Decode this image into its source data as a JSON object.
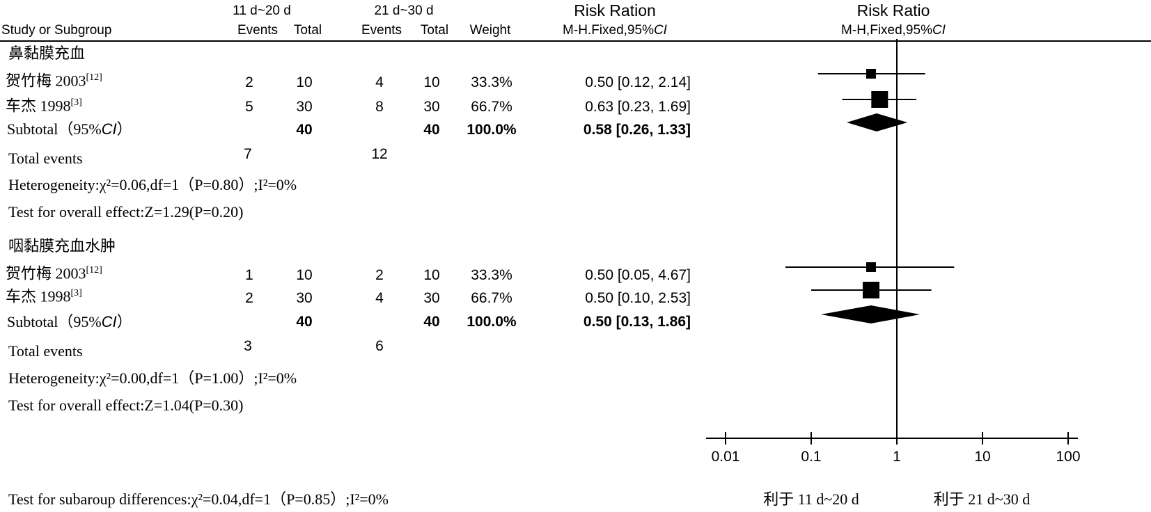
{
  "header": {
    "group1": "11 d~20 d",
    "group2": "21 d~30 d",
    "study_col": "Study or Subgroup",
    "events": "Events",
    "total": "Total",
    "weight": "Weight",
    "rr_col_title": "Risk Ration",
    "rr_col_method": "M-H.Fixed,95%",
    "plot_title": "Risk Ratio",
    "plot_method": "M-H,Fixed,95%",
    "ci": "CI"
  },
  "subgroups": [
    {
      "name": "鼻黏膜充血",
      "studies": [
        {
          "name": "贺竹梅 2003",
          "ref": "[12]",
          "e1": "2",
          "t1": "10",
          "e2": "4",
          "t2": "10",
          "weight": "33.3%",
          "rr_text": "0.50 [0.12, 2.14]"
        },
        {
          "name": "车杰 1998",
          "ref": "[3]",
          "e1": "5",
          "t1": "30",
          "e2": "8",
          "t2": "30",
          "weight": "66.7%",
          "rr_text": "0.63 [0.23, 1.69]"
        }
      ],
      "subtotal": {
        "label": "Subtotal（95%",
        "ci": "CI",
        "close": "）",
        "t1": "40",
        "t2": "40",
        "weight": "100.0%",
        "rr_text": "0.58 [0.26, 1.33]"
      },
      "total_events": {
        "label": "Total events",
        "e1": "7",
        "e2": "12"
      },
      "heterogeneity": "Heterogeneity:χ²=0.06,df=1（P=0.80）;I²=0%",
      "overall": "Test for overall effect:Z=1.29(P=0.20)"
    },
    {
      "name": "咽黏膜充血水肿",
      "studies": [
        {
          "name": "贺竹梅 2003",
          "ref": "[12]",
          "e1": "1",
          "t1": "10",
          "e2": "2",
          "t2": "10",
          "weight": "33.3%",
          "rr_text": "0.50 [0.05, 4.67]"
        },
        {
          "name": "车杰 1998",
          "ref": "[3]",
          "e1": "2",
          "t1": "30",
          "e2": "4",
          "t2": "30",
          "weight": "66.7%",
          "rr_text": "0.50 [0.10, 2.53]"
        }
      ],
      "subtotal": {
        "label": "Subtotal（95%",
        "ci": "CI",
        "close": "）",
        "t1": "40",
        "t2": "40",
        "weight": "100.0%",
        "rr_text": "0.50 [0.13, 1.86]"
      },
      "total_events": {
        "label": "Total events",
        "e1": "3",
        "e2": "6"
      },
      "heterogeneity": "Heterogeneity:χ²=0.00,df=1（P=1.00）;I²=0%",
      "overall": "Test for overall effect:Z=1.04(P=0.30)"
    }
  ],
  "footer": {
    "subgroup_diff": "Test for subaroup differences:χ²=0.04,df=1（P=0.85）;I²=0%"
  },
  "axis": {
    "ticks": [
      "0.01",
      "0.1",
      "1",
      "10",
      "100"
    ],
    "left_label": "利于 11 d~20 d",
    "right_label": "利于 21 d~30 d"
  },
  "chart_data": {
    "type": "forest",
    "scale": "log",
    "xlim": [
      0.01,
      100
    ],
    "ticks": [
      0.01,
      0.1,
      1,
      10,
      100
    ],
    "reference_line": 1,
    "studies": [
      {
        "subgroup": "鼻黏膜充血",
        "name": "贺竹梅 2003",
        "rr": 0.5,
        "lo": 0.12,
        "hi": 2.14,
        "weight": 33.3
      },
      {
        "subgroup": "鼻黏膜充血",
        "name": "车杰 1998",
        "rr": 0.63,
        "lo": 0.23,
        "hi": 1.69,
        "weight": 66.7
      },
      {
        "subgroup": "咽黏膜充血水肿",
        "name": "贺竹梅 2003",
        "rr": 0.5,
        "lo": 0.05,
        "hi": 4.67,
        "weight": 33.3
      },
      {
        "subgroup": "咽黏膜充血水肿",
        "name": "车杰 1998",
        "rr": 0.5,
        "lo": 0.1,
        "hi": 2.53,
        "weight": 66.7
      }
    ],
    "subtotals": [
      {
        "subgroup": "鼻黏膜充血",
        "rr": 0.58,
        "lo": 0.26,
        "hi": 1.33
      },
      {
        "subgroup": "咽黏膜充血水肿",
        "rr": 0.5,
        "lo": 0.13,
        "hi": 1.86
      }
    ]
  }
}
